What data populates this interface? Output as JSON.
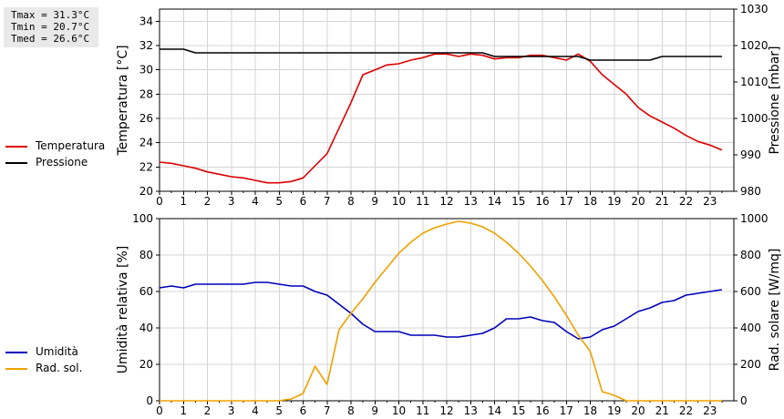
{
  "stats": {
    "tmax": "Tmax = 31.3°C",
    "tmin": "Tmin = 20.7°C",
    "tmed": "Tmed = 26.6°C"
  },
  "chart_data": [
    {
      "type": "line",
      "x_ticks": [
        0,
        1,
        2,
        3,
        4,
        5,
        6,
        7,
        8,
        9,
        10,
        11,
        12,
        13,
        14,
        15,
        16,
        17,
        18,
        19,
        20,
        21,
        22,
        23
      ],
      "xlim": [
        0,
        24
      ],
      "ylabel": "Temperatura [°C]",
      "ylabel_right": "Pressione [mbar]",
      "ylim": [
        20,
        35
      ],
      "y_ticks": [
        20,
        22,
        24,
        26,
        28,
        30,
        32,
        34
      ],
      "ylim_right": [
        980,
        1030
      ],
      "y_ticks_right": [
        980,
        990,
        1000,
        1010,
        1020,
        1030
      ],
      "grid": true,
      "legend_position": "left, outside plot",
      "series": [
        {
          "name": "Temperatura",
          "axis": "left",
          "color": "#dd0000",
          "x": [
            0,
            0.5,
            1,
            1.5,
            2,
            2.5,
            3,
            3.5,
            4,
            4.5,
            5,
            5.5,
            6,
            6.5,
            7,
            7.5,
            8,
            8.5,
            9,
            9.5,
            10,
            10.5,
            11,
            11.5,
            12,
            12.5,
            13,
            13.5,
            14,
            14.5,
            15,
            15.5,
            16,
            16.5,
            17,
            17.5,
            18,
            18.5,
            19,
            19.5,
            20,
            20.5,
            21,
            21.5,
            22,
            22.5,
            23,
            23.5
          ],
          "y": [
            22.4,
            22.3,
            22.1,
            21.9,
            21.6,
            21.4,
            21.2,
            21.1,
            20.9,
            20.7,
            20.7,
            20.8,
            21.1,
            22.1,
            23.1,
            25.2,
            27.3,
            29.6,
            30.0,
            30.4,
            30.5,
            30.8,
            31.0,
            31.3,
            31.3,
            31.1,
            31.3,
            31.2,
            30.9,
            31.0,
            31.0,
            31.2,
            31.2,
            31.0,
            30.8,
            31.3,
            30.7,
            29.6,
            28.8,
            28.0,
            26.9,
            26.2,
            25.7,
            25.2,
            24.6,
            24.1,
            23.8,
            23.4
          ]
        },
        {
          "name": "Pressione",
          "axis": "right",
          "color": "#000000",
          "x": [
            0,
            1,
            1.5,
            13.5,
            14,
            17.5,
            18,
            20.5,
            21,
            23.5
          ],
          "y": [
            1019,
            1019,
            1018,
            1018,
            1017,
            1017,
            1016,
            1016,
            1017,
            1017
          ]
        }
      ]
    },
    {
      "type": "line",
      "x_ticks": [
        0,
        1,
        2,
        3,
        4,
        5,
        6,
        7,
        8,
        9,
        10,
        11,
        12,
        13,
        14,
        15,
        16,
        17,
        18,
        19,
        20,
        21,
        22,
        23
      ],
      "xlim": [
        0,
        24
      ],
      "ylabel": "Umidità relativa [%]",
      "ylabel_right": "Rad. solare [W/mq]",
      "ylim": [
        0,
        100
      ],
      "y_ticks": [
        0,
        20,
        40,
        60,
        80,
        100
      ],
      "ylim_right": [
        0,
        1000
      ],
      "y_ticks_right": [
        0,
        200,
        400,
        600,
        800,
        1000
      ],
      "grid": true,
      "legend_position": "left, outside plot",
      "series": [
        {
          "name": "Umidità",
          "axis": "left",
          "color": "#0000bb",
          "x": [
            0,
            0.5,
            1,
            1.5,
            2,
            2.5,
            3,
            3.5,
            4,
            4.5,
            5,
            5.5,
            6,
            6.5,
            7,
            7.5,
            8,
            8.5,
            9,
            9.5,
            10,
            10.5,
            11,
            11.5,
            12,
            12.5,
            13,
            13.5,
            14,
            14.5,
            15,
            15.5,
            16,
            16.5,
            17,
            17.5,
            18,
            18.5,
            19,
            19.5,
            20,
            20.5,
            21,
            21.5,
            22,
            22.5,
            23,
            23.5
          ],
          "y": [
            62,
            63,
            62,
            64,
            64,
            64,
            64,
            64,
            65,
            65,
            64,
            63,
            63,
            60,
            58,
            53,
            48,
            42,
            38,
            38,
            38,
            36,
            36,
            36,
            35,
            35,
            36,
            37,
            40,
            45,
            45,
            46,
            44,
            43,
            38,
            34,
            35,
            39,
            41,
            45,
            49,
            51,
            54,
            55,
            58,
            59,
            60,
            61
          ]
        },
        {
          "name": "Rad. sol.",
          "axis": "right",
          "color": "#f0a000",
          "x": [
            0,
            0.5,
            1,
            1.5,
            2,
            2.5,
            3,
            3.5,
            4,
            4.5,
            5,
            5.5,
            6,
            6.5,
            7,
            7.5,
            8,
            8.5,
            9,
            9.5,
            10,
            10.5,
            11,
            11.5,
            12,
            12.5,
            13,
            13.5,
            14,
            14.5,
            15,
            15.5,
            16,
            16.5,
            17,
            17.5,
            18,
            18.5,
            19,
            19.5,
            20,
            20.5,
            21,
            21.5,
            22,
            22.5,
            23,
            23.5
          ],
          "y": [
            0,
            0,
            0,
            0,
            0,
            0,
            0,
            0,
            0,
            0,
            0,
            10,
            40,
            190,
            90,
            390,
            480,
            560,
            650,
            730,
            810,
            870,
            920,
            950,
            970,
            985,
            975,
            955,
            920,
            870,
            810,
            740,
            660,
            570,
            470,
            360,
            270,
            50,
            30,
            0,
            0,
            0,
            0,
            0,
            0,
            0,
            0,
            0
          ]
        }
      ]
    }
  ]
}
